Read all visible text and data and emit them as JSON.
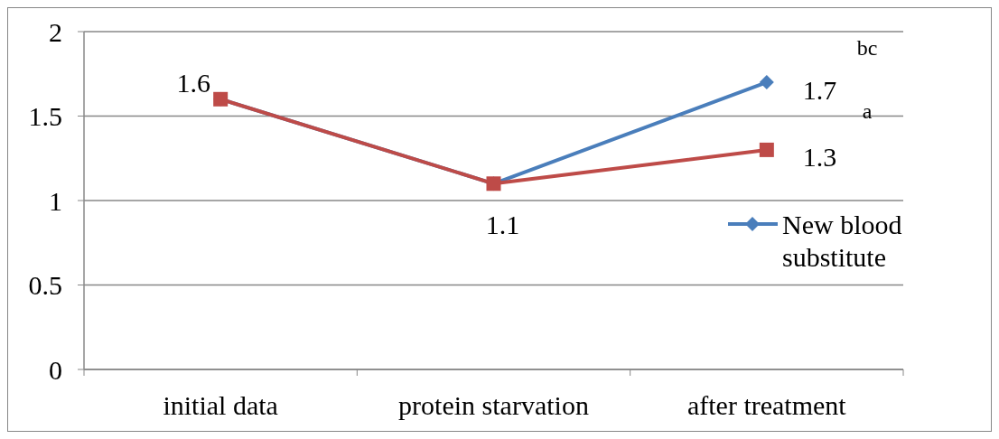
{
  "chart_data": {
    "type": "line",
    "categories": [
      "initial data",
      "protein starvation",
      "after treatment"
    ],
    "series": [
      {
        "name": "New blood substitute",
        "color": "#4a7ebb",
        "marker": "diamond",
        "values": [
          1.6,
          1.1,
          1.7
        ],
        "value_labels": [
          null,
          null,
          "1.7"
        ]
      },
      {
        "color": "#be4b48",
        "marker": "square",
        "values": [
          1.6,
          1.1,
          1.3
        ],
        "value_labels": [
          "1.6",
          "1.1",
          "1.3"
        ]
      }
    ],
    "ylim": [
      0,
      2
    ],
    "yticks": [
      0,
      0.5,
      1,
      1.5,
      2
    ],
    "grid": "y",
    "legend": "right",
    "annotations": [
      "bc",
      "a"
    ]
  }
}
